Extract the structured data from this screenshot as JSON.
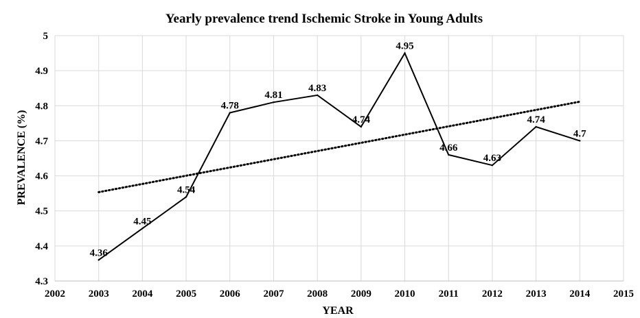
{
  "chart_data": {
    "type": "line",
    "title": "Yearly prevalence trend Ischemic Stroke in Young Adults",
    "xlabel": "YEAR",
    "ylabel": "PREVALENCE (%)",
    "xlim": [
      2002,
      2015
    ],
    "ylim": [
      4.3,
      5.0
    ],
    "x_ticks": [
      2002,
      2003,
      2004,
      2005,
      2006,
      2007,
      2008,
      2009,
      2010,
      2011,
      2012,
      2013,
      2014,
      2015
    ],
    "y_ticks": [
      4.3,
      4.4,
      4.5,
      4.6,
      4.7,
      4.8,
      4.9,
      5.0
    ],
    "y_tick_labels": [
      "4.3",
      "4.4",
      "4.5",
      "4.6",
      "4.7",
      "4.8",
      "4.9",
      "5"
    ],
    "grid": true,
    "legend": "none",
    "series": [
      {
        "x": [
          2003,
          2004,
          2005,
          2006,
          2007,
          2008,
          2009,
          2010,
          2011,
          2012,
          2013,
          2014
        ],
        "values": [
          4.36,
          4.45,
          4.54,
          4.78,
          4.81,
          4.83,
          4.74,
          4.95,
          4.66,
          4.63,
          4.74,
          4.7
        ],
        "labels": [
          "4.36",
          "4.45",
          "4.54",
          "4.78",
          "4.81",
          "4.83",
          "4.74",
          "4.95",
          "4.66",
          "4.63",
          "4.74",
          "4.7"
        ],
        "color": "#000000"
      }
    ],
    "trendline": {
      "style": "dotted",
      "type": "linear",
      "color": "#000000",
      "x": [
        2003,
        2014
      ]
    }
  }
}
